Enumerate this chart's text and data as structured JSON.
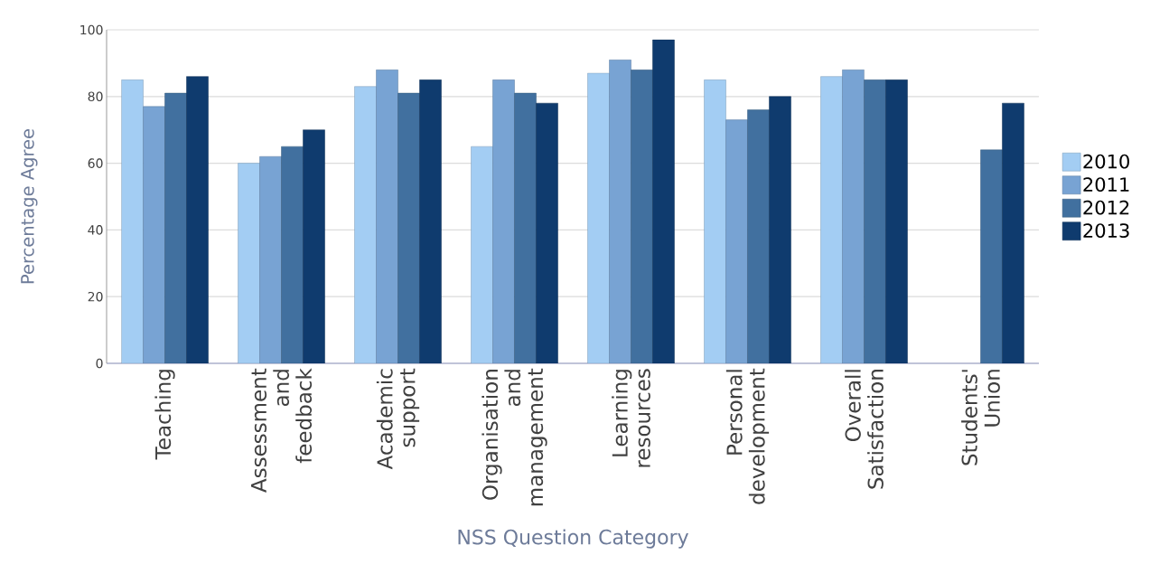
{
  "chart_data": {
    "type": "bar",
    "xlabel": "NSS Question Category",
    "ylabel": "Percentage Agree",
    "categories": [
      "Teaching",
      "Assessment and feedback",
      "Academic support",
      "Organisation and management",
      "Learning resources",
      "Personal development",
      "Overall Satisfaction",
      "Students' Union"
    ],
    "series": [
      {
        "name": "2010",
        "color": "#a3cdf3",
        "values": [
          85,
          60,
          83,
          65,
          87,
          85,
          86,
          null
        ]
      },
      {
        "name": "2011",
        "color": "#78a3d3",
        "values": [
          77,
          62,
          88,
          85,
          91,
          73,
          88,
          null
        ]
      },
      {
        "name": "2012",
        "color": "#41709f",
        "values": [
          81,
          65,
          81,
          81,
          88,
          76,
          85,
          64
        ]
      },
      {
        "name": "2013",
        "color": "#0f3b6e",
        "values": [
          86,
          70,
          85,
          78,
          97,
          80,
          85,
          78
        ]
      }
    ],
    "ylim": [
      0,
      100
    ],
    "yticks": [
      0,
      20,
      40,
      60,
      80,
      100
    ],
    "grid": "y",
    "legend": "right"
  }
}
